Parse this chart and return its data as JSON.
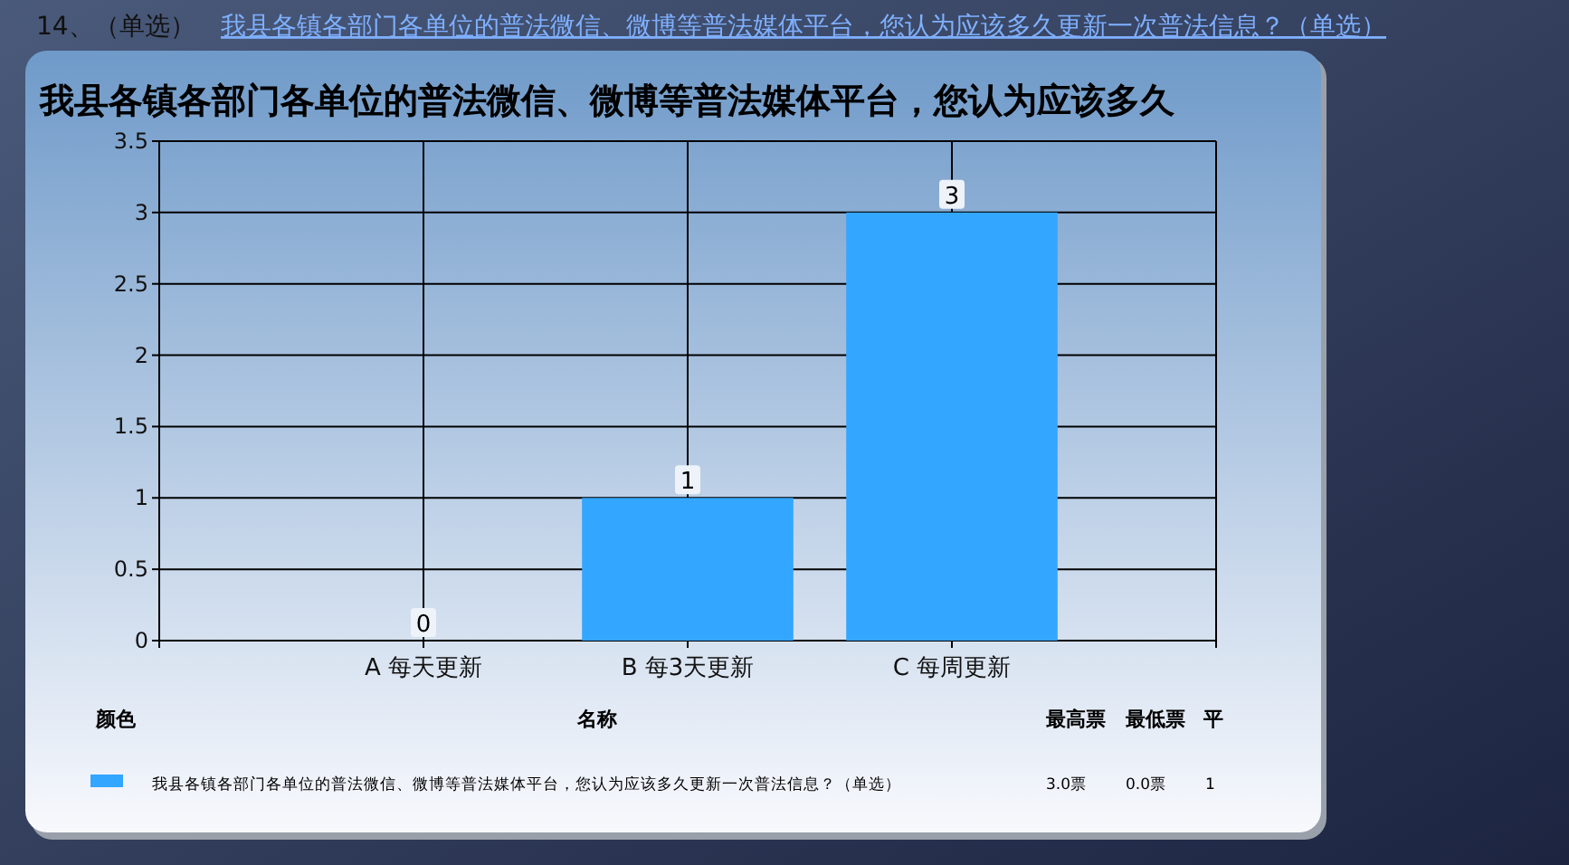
{
  "chart_data": {
    "type": "bar",
    "title": "我县各镇各部门各单位的普法微信、微博等普法媒体平台，您认为应该多久",
    "categories": [
      "A 每天更新",
      "B 每3天更新",
      "C 每周更新"
    ],
    "series": [
      {
        "name": "我县各镇各部门各单位的普法微信、微博等普法媒体平台，您认为应该多久更新一次普法信息？（单选）",
        "color": "#33a6ff",
        "values": [
          0,
          1,
          3
        ]
      }
    ],
    "ylim": [
      0,
      3.5
    ],
    "yticks": [
      0,
      0.5,
      1,
      1.5,
      2,
      2.5,
      3,
      3.5
    ],
    "grid": true,
    "data_labels": true,
    "legend": "bottom",
    "annotations": [
      "14、（单选）",
      "我县各镇各部门各单位的普法微信、微博等普法媒体平台，您认为应该多久更新一次普法信息？（单选）",
      "颜色",
      "名称",
      "最高票",
      "最低票",
      "平",
      "3.0票",
      "0.0票",
      "1"
    ]
  }
}
